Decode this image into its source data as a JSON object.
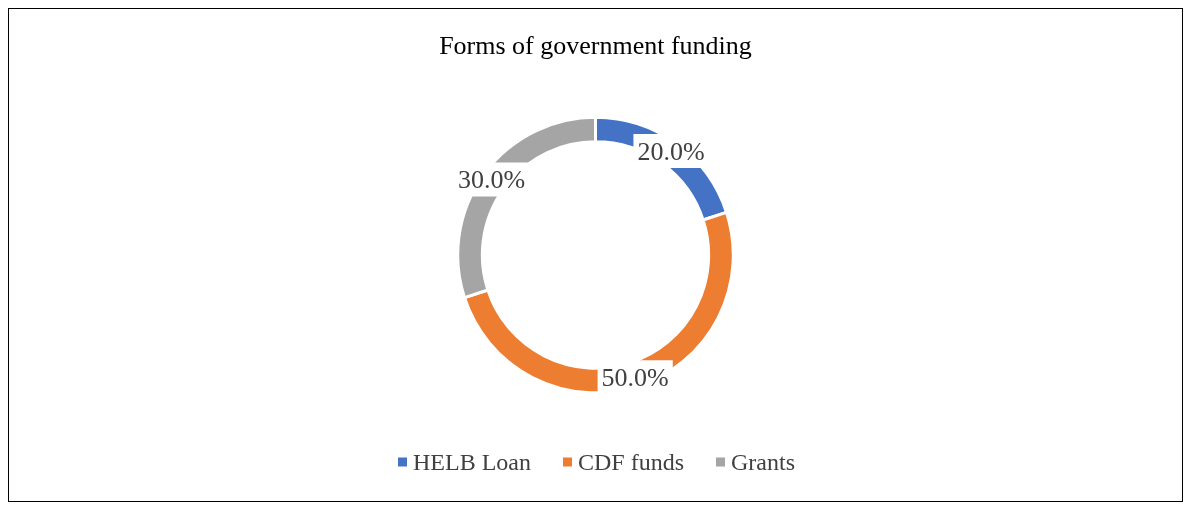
{
  "chart_data": {
    "type": "donut",
    "title": "Forms of government funding",
    "categories": [
      "HELB Loan",
      "CDF funds",
      "Grants"
    ],
    "values": [
      20,
      50,
      30
    ],
    "colors": [
      "#4472c4",
      "#ed7d31",
      "#a5a5a5"
    ],
    "value_labels": [
      "20.0%",
      "50.0%",
      "30.0%"
    ],
    "legend": "bottom"
  }
}
